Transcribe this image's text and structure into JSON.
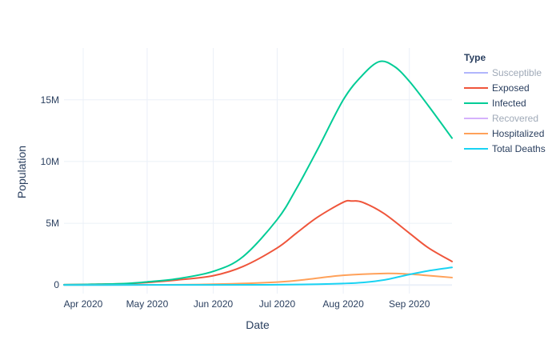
{
  "chart_data": {
    "type": "line",
    "title": "",
    "xlabel": "Date",
    "ylabel": "Population",
    "x_start": "2020-03-23",
    "x_end": "2020-09-21",
    "xlim": [
      "2020-03-23",
      "2020-09-21"
    ],
    "ylim": [
      -700000,
      19200000
    ],
    "x_ticks": [
      {
        "date": "2020-04-01",
        "label": "Apr 2020"
      },
      {
        "date": "2020-05-01",
        "label": "May 2020"
      },
      {
        "date": "2020-06-01",
        "label": "Jun 2020"
      },
      {
        "date": "2020-07-01",
        "label": "Jul 2020"
      },
      {
        "date": "2020-08-01",
        "label": "Aug 2020"
      },
      {
        "date": "2020-09-01",
        "label": "Sep 2020"
      }
    ],
    "y_ticks": [
      {
        "value": 0,
        "label": "0"
      },
      {
        "value": 5000000,
        "label": "5M"
      },
      {
        "value": 10000000,
        "label": "10M"
      },
      {
        "value": 15000000,
        "label": "15M"
      }
    ],
    "grid": true,
    "legend": {
      "title": "Type",
      "position": "right"
    },
    "series": [
      {
        "name": "Susceptible",
        "color": "#636efa",
        "hidden": true,
        "x": [],
        "y": []
      },
      {
        "name": "Exposed",
        "color": "#ef553b",
        "hidden": false,
        "x": [
          "2020-03-23",
          "2020-04-05",
          "2020-04-20",
          "2020-05-01",
          "2020-05-15",
          "2020-06-01",
          "2020-06-15",
          "2020-07-01",
          "2020-07-10",
          "2020-07-20",
          "2020-08-01",
          "2020-08-05",
          "2020-08-10",
          "2020-08-20",
          "2020-09-01",
          "2020-09-10",
          "2020-09-21"
        ],
        "y": [
          20000,
          50000,
          100000,
          200000,
          400000,
          750000,
          1500000,
          3000000,
          4200000,
          5500000,
          6700000,
          6800000,
          6700000,
          5800000,
          4200000,
          3000000,
          1900000
        ]
      },
      {
        "name": "Infected",
        "color": "#00cc96",
        "hidden": false,
        "x": [
          "2020-03-23",
          "2020-04-05",
          "2020-04-20",
          "2020-05-01",
          "2020-05-15",
          "2020-06-01",
          "2020-06-15",
          "2020-07-01",
          "2020-07-10",
          "2020-07-20",
          "2020-08-01",
          "2020-08-10",
          "2020-08-18",
          "2020-08-25",
          "2020-09-01",
          "2020-09-10",
          "2020-09-21"
        ],
        "y": [
          20000,
          50000,
          110000,
          250000,
          500000,
          1100000,
          2300000,
          5300000,
          7800000,
          11000000,
          15000000,
          17000000,
          18100000,
          17700000,
          16500000,
          14500000,
          11900000
        ]
      },
      {
        "name": "Recovered",
        "color": "#ab63fa",
        "hidden": true,
        "x": [],
        "y": []
      },
      {
        "name": "Hospitalized",
        "color": "#ffa15a",
        "hidden": false,
        "x": [
          "2020-03-23",
          "2020-05-01",
          "2020-06-01",
          "2020-07-01",
          "2020-07-15",
          "2020-08-01",
          "2020-08-20",
          "2020-09-01",
          "2020-09-10",
          "2020-09-21"
        ],
        "y": [
          0,
          10000,
          60000,
          230000,
          450000,
          780000,
          930000,
          880000,
          760000,
          600000
        ]
      },
      {
        "name": "Total Deaths",
        "color": "#19d3f3",
        "hidden": false,
        "x": [
          "2020-03-23",
          "2020-06-01",
          "2020-07-01",
          "2020-07-20",
          "2020-08-01",
          "2020-08-10",
          "2020-08-20",
          "2020-09-01",
          "2020-09-10",
          "2020-09-21"
        ],
        "y": [
          0,
          5000,
          20000,
          60000,
          120000,
          200000,
          400000,
          850000,
          1150000,
          1420000
        ]
      }
    ]
  }
}
